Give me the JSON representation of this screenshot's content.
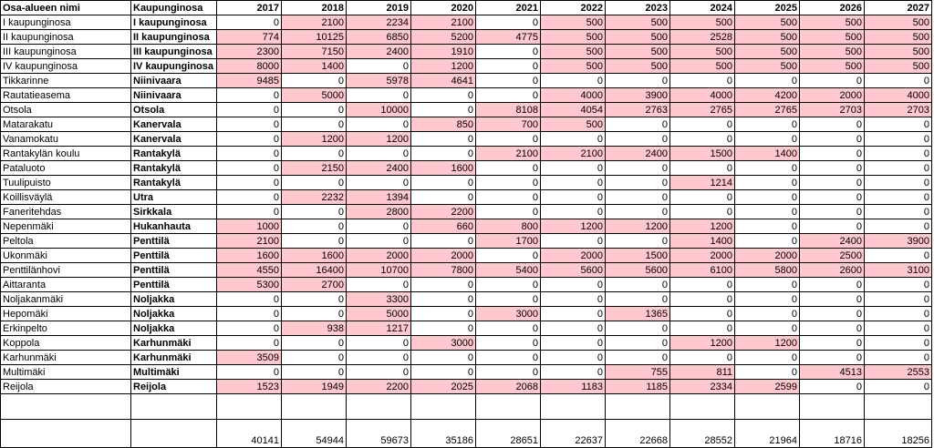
{
  "headers": {
    "area": "Osa-alueen nimi",
    "district": "Kaupunginosa",
    "years": [
      "2017",
      "2018",
      "2019",
      "2020",
      "2021",
      "2022",
      "2023",
      "2024",
      "2025",
      "2026",
      "2027"
    ]
  },
  "rows": [
    {
      "area": "I kaupunginosa",
      "district": "I kaupunginosa",
      "values": [
        "0",
        "2100",
        "2234",
        "2100",
        "0",
        "500",
        "500",
        "500",
        "500",
        "500",
        "500"
      ],
      "hl": [
        0,
        1,
        1,
        1,
        0,
        1,
        1,
        1,
        1,
        1,
        1
      ]
    },
    {
      "area": "II kaupunginosa",
      "district": "II kaupunginosa",
      "values": [
        "774",
        "10125",
        "6850",
        "5200",
        "4775",
        "500",
        "500",
        "2528",
        "500",
        "500",
        "500"
      ],
      "hl": [
        1,
        1,
        1,
        1,
        1,
        1,
        1,
        1,
        1,
        1,
        1
      ]
    },
    {
      "area": "III kaupunginosa",
      "district": "III kaupunginosa",
      "values": [
        "2300",
        "7150",
        "2400",
        "1910",
        "0",
        "500",
        "500",
        "500",
        "500",
        "500",
        "500"
      ],
      "hl": [
        1,
        1,
        1,
        1,
        0,
        1,
        1,
        1,
        1,
        1,
        1
      ]
    },
    {
      "area": "IV kaupunginosa",
      "district": "IV kaupunginosa",
      "values": [
        "8000",
        "1400",
        "0",
        "1200",
        "0",
        "500",
        "500",
        "500",
        "500",
        "500",
        "500"
      ],
      "hl": [
        1,
        1,
        0,
        1,
        0,
        1,
        1,
        1,
        1,
        1,
        1
      ]
    },
    {
      "area": "Tikkarinne",
      "district": "Niinivaara",
      "values": [
        "9485",
        "0",
        "5978",
        "4641",
        "0",
        "0",
        "0",
        "0",
        "0",
        "0",
        "0"
      ],
      "hl": [
        1,
        0,
        1,
        1,
        0,
        0,
        0,
        0,
        0,
        0,
        0
      ]
    },
    {
      "area": "Rautatieasema",
      "district": "Niinivaara",
      "values": [
        "0",
        "5000",
        "0",
        "0",
        "0",
        "4000",
        "3900",
        "4000",
        "4200",
        "2000",
        "4000"
      ],
      "hl": [
        0,
        1,
        0,
        0,
        0,
        1,
        1,
        1,
        1,
        1,
        1
      ]
    },
    {
      "area": "Otsola",
      "district": "Otsola",
      "values": [
        "0",
        "0",
        "10000",
        "0",
        "8108",
        "4054",
        "2763",
        "2765",
        "2765",
        "2703",
        "2703"
      ],
      "hl": [
        0,
        0,
        1,
        0,
        1,
        1,
        1,
        1,
        1,
        1,
        1
      ]
    },
    {
      "area": "Matarakatu",
      "district": "Kanervala",
      "values": [
        "0",
        "0",
        "0",
        "850",
        "700",
        "500",
        "0",
        "0",
        "0",
        "0",
        "0"
      ],
      "hl": [
        0,
        0,
        0,
        1,
        1,
        1,
        0,
        0,
        0,
        0,
        0
      ]
    },
    {
      "area": "Vanamokatu",
      "district": "Kanervala",
      "values": [
        "0",
        "1200",
        "1200",
        "0",
        "0",
        "0",
        "0",
        "0",
        "0",
        "0",
        "0"
      ],
      "hl": [
        0,
        1,
        1,
        0,
        0,
        0,
        0,
        0,
        0,
        0,
        0
      ]
    },
    {
      "area": "Rantakylän koulu",
      "district": "Rantakylä",
      "values": [
        "0",
        "0",
        "0",
        "0",
        "2100",
        "2100",
        "2400",
        "1500",
        "1400",
        "0",
        "0"
      ],
      "hl": [
        0,
        0,
        0,
        0,
        1,
        1,
        1,
        1,
        1,
        0,
        0
      ]
    },
    {
      "area": "Pataluoto",
      "district": "Rantakylä",
      "values": [
        "0",
        "2150",
        "2400",
        "1600",
        "0",
        "0",
        "0",
        "0",
        "0",
        "0",
        "0"
      ],
      "hl": [
        0,
        1,
        1,
        1,
        0,
        0,
        0,
        0,
        0,
        0,
        0
      ]
    },
    {
      "area": "Tuulipuisto",
      "district": "Rantakylä",
      "values": [
        "0",
        "0",
        "0",
        "0",
        "0",
        "0",
        "0",
        "1214",
        "0",
        "0",
        "0"
      ],
      "hl": [
        0,
        0,
        0,
        0,
        0,
        0,
        0,
        1,
        0,
        0,
        0
      ]
    },
    {
      "area": "Koillisväylä",
      "district": "Utra",
      "values": [
        "0",
        "2232",
        "1394",
        "0",
        "0",
        "0",
        "0",
        "0",
        "0",
        "0",
        "0"
      ],
      "hl": [
        0,
        1,
        1,
        0,
        0,
        0,
        0,
        0,
        0,
        0,
        0
      ]
    },
    {
      "area": "Faneritehdas",
      "district": "Sirkkala",
      "values": [
        "0",
        "0",
        "2800",
        "2200",
        "0",
        "0",
        "0",
        "0",
        "0",
        "0",
        "0"
      ],
      "hl": [
        0,
        0,
        1,
        1,
        0,
        0,
        0,
        0,
        0,
        0,
        0
      ]
    },
    {
      "area": "Nepenmäki",
      "district": "Hukanhauta",
      "values": [
        "1000",
        "0",
        "0",
        "660",
        "800",
        "1200",
        "1200",
        "1200",
        "0",
        "0",
        "0"
      ],
      "hl": [
        1,
        0,
        0,
        1,
        1,
        1,
        1,
        1,
        0,
        0,
        0
      ]
    },
    {
      "area": "Peltola",
      "district": "Penttilä",
      "values": [
        "2100",
        "0",
        "0",
        "0",
        "1700",
        "0",
        "0",
        "1400",
        "0",
        "2400",
        "3900"
      ],
      "hl": [
        1,
        0,
        0,
        0,
        1,
        0,
        0,
        1,
        0,
        1,
        1
      ]
    },
    {
      "area": "Ukonmäki",
      "district": "Penttilä",
      "values": [
        "1600",
        "1600",
        "2000",
        "2000",
        "0",
        "2000",
        "1500",
        "2000",
        "2000",
        "2500",
        "0"
      ],
      "hl": [
        1,
        1,
        1,
        1,
        0,
        1,
        1,
        1,
        1,
        1,
        0
      ]
    },
    {
      "area": "Penttilänhovi",
      "district": "Penttilä",
      "values": [
        "4550",
        "16400",
        "10700",
        "7800",
        "5400",
        "5600",
        "5600",
        "6100",
        "5800",
        "2600",
        "3100"
      ],
      "hl": [
        1,
        1,
        1,
        1,
        1,
        1,
        1,
        1,
        1,
        1,
        1
      ]
    },
    {
      "area": "Aittaranta",
      "district": "Penttilä",
      "values": [
        "5300",
        "2700",
        "0",
        "0",
        "0",
        "0",
        "0",
        "0",
        "0",
        "0",
        "0"
      ],
      "hl": [
        1,
        1,
        0,
        0,
        0,
        0,
        0,
        0,
        0,
        0,
        0
      ]
    },
    {
      "area": "Noljakanmäki",
      "district": "Noljakka",
      "values": [
        "0",
        "0",
        "3300",
        "0",
        "0",
        "0",
        "0",
        "0",
        "0",
        "0",
        "0"
      ],
      "hl": [
        0,
        0,
        1,
        0,
        0,
        0,
        0,
        0,
        0,
        0,
        0
      ]
    },
    {
      "area": "Hepomäki",
      "district": "Noljakka",
      "values": [
        "0",
        "0",
        "5000",
        "0",
        "3000",
        "0",
        "1365",
        "0",
        "0",
        "0",
        "0"
      ],
      "hl": [
        0,
        0,
        1,
        0,
        1,
        0,
        1,
        0,
        0,
        0,
        0
      ]
    },
    {
      "area": "Erkinpelto",
      "district": "Noljakka",
      "values": [
        "0",
        "938",
        "1217",
        "0",
        "0",
        "0",
        "0",
        "0",
        "0",
        "0",
        "0"
      ],
      "hl": [
        0,
        1,
        1,
        0,
        0,
        0,
        0,
        0,
        0,
        0,
        0
      ]
    },
    {
      "area": "Koppola",
      "district": "Karhunmäki",
      "values": [
        "0",
        "0",
        "0",
        "3000",
        "0",
        "0",
        "0",
        "1200",
        "1200",
        "0",
        "0"
      ],
      "hl": [
        0,
        0,
        0,
        1,
        0,
        0,
        0,
        1,
        1,
        0,
        0
      ]
    },
    {
      "area": "Karhunmäki",
      "district": "Karhunmäki",
      "values": [
        "3509",
        "0",
        "0",
        "0",
        "0",
        "0",
        "0",
        "0",
        "0",
        "0",
        "0"
      ],
      "hl": [
        1,
        0,
        0,
        0,
        0,
        0,
        0,
        0,
        0,
        0,
        0
      ]
    },
    {
      "area": "Multimäki",
      "district": "Multimäki",
      "values": [
        "0",
        "0",
        "0",
        "0",
        "0",
        "0",
        "755",
        "811",
        "0",
        "4513",
        "2553"
      ],
      "hl": [
        0,
        0,
        0,
        0,
        0,
        0,
        1,
        1,
        0,
        1,
        1
      ]
    },
    {
      "area": "Reijola",
      "district": "Reijola",
      "values": [
        "1523",
        "1949",
        "2200",
        "2025",
        "2068",
        "1183",
        "1185",
        "2334",
        "2599",
        "0",
        "0"
      ],
      "hl": [
        1,
        1,
        1,
        1,
        1,
        1,
        1,
        1,
        1,
        0,
        0
      ]
    }
  ],
  "totals": [
    "40141",
    "54944",
    "59673",
    "35186",
    "28651",
    "22637",
    "22668",
    "28552",
    "21964",
    "18716",
    "18256"
  ],
  "colors": {
    "highlight": "#ffc7ce",
    "border": "#000000"
  }
}
